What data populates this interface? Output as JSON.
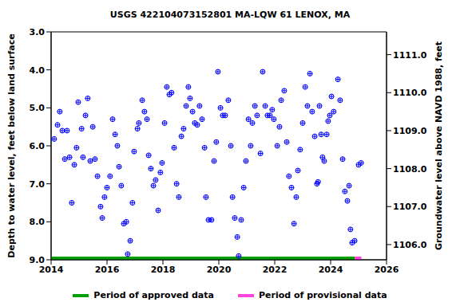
{
  "chart_data": {
    "type": "scatter",
    "title": "USGS 422104073152801 MA-LQW   61 LENOX, MA",
    "y_label": "Depth to water level, feet below land surface",
    "y2_label": "Groundwater level above NAVD 1988, feet",
    "color": "#0000ff",
    "marker": "circle-plus",
    "xlim": [
      2014,
      2026
    ],
    "xticks": [
      2014,
      2016,
      2018,
      2020,
      2022,
      2024,
      2026
    ],
    "ylim": [
      3,
      9
    ],
    "yticks": [
      {
        "value": 3,
        "label": "3.0"
      },
      {
        "value": 4,
        "label": "4.0"
      },
      {
        "value": 5,
        "label": "5.0"
      },
      {
        "value": 6,
        "label": "6.0"
      },
      {
        "value": 7,
        "label": "7.0"
      },
      {
        "value": 8,
        "label": "8.0"
      },
      {
        "value": 9,
        "label": "9.0"
      }
    ],
    "y2lim": [
      1105.6,
      1111.6
    ],
    "y2ticks": [
      {
        "value": 1106,
        "label": "1106.0"
      },
      {
        "value": 1107,
        "label": "1107.0"
      },
      {
        "value": 1108,
        "label": "1108.0"
      },
      {
        "value": 1109,
        "label": "1109.0"
      },
      {
        "value": 1110,
        "label": "1110.0"
      },
      {
        "value": 1111,
        "label": "1111.0"
      }
    ],
    "x": [
      2014.11,
      2014.23,
      2014.31,
      2014.4,
      2014.49,
      2014.57,
      2014.66,
      2014.74,
      2014.83,
      2014.91,
      2014.97,
      2015.09,
      2015.14,
      2015.23,
      2015.31,
      2015.4,
      2015.49,
      2015.57,
      2015.66,
      2015.77,
      2015.83,
      2015.91,
      2016.0,
      2016.11,
      2016.2,
      2016.29,
      2016.37,
      2016.43,
      2016.51,
      2016.6,
      2016.69,
      2016.74,
      2016.83,
      2016.91,
      2016.97,
      2017.09,
      2017.14,
      2017.26,
      2017.34,
      2017.43,
      2017.49,
      2017.57,
      2017.66,
      2017.74,
      2017.83,
      2017.91,
      2017.97,
      2018.06,
      2018.14,
      2018.23,
      2018.31,
      2018.4,
      2018.49,
      2018.57,
      2018.66,
      2018.74,
      2018.83,
      2018.91,
      2018.97,
      2019.06,
      2019.14,
      2019.23,
      2019.31,
      2019.4,
      2019.49,
      2019.54,
      2019.63,
      2019.74,
      2019.83,
      2019.91,
      2019.97,
      2020.06,
      2020.14,
      2020.23,
      2020.34,
      2020.43,
      2020.49,
      2020.57,
      2020.66,
      2020.71,
      2020.8,
      2020.89,
      2020.97,
      2021.06,
      2021.14,
      2021.2,
      2021.29,
      2021.37,
      2021.49,
      2021.57,
      2021.66,
      2021.74,
      2021.83,
      2021.91,
      2021.97,
      2022.09,
      2022.17,
      2022.23,
      2022.34,
      2022.43,
      2022.51,
      2022.6,
      2022.69,
      2022.77,
      2022.83,
      2022.91,
      2023.0,
      2023.09,
      2023.17,
      2023.26,
      2023.34,
      2023.43,
      2023.51,
      2023.55,
      2023.6,
      2023.66,
      2023.71,
      2023.77,
      2023.86,
      2023.91,
      2023.97,
      2024.03,
      2024.11,
      2024.26,
      2024.34,
      2024.43,
      2024.51,
      2024.6,
      2024.66,
      2024.71,
      2024.77,
      2024.86,
      2025.0,
      2025.09
    ],
    "values": [
      5.82,
      5.45,
      5.1,
      5.6,
      6.35,
      5.6,
      6.3,
      7.5,
      6.5,
      6.05,
      4.85,
      5.55,
      6.3,
      5.2,
      4.75,
      6.4,
      5.5,
      6.35,
      6.8,
      7.6,
      7.9,
      7.35,
      7.1,
      6.8,
      5.3,
      5.7,
      6.0,
      6.55,
      7.05,
      8.05,
      8.0,
      8.85,
      8.5,
      7.5,
      6.15,
      5.55,
      5.4,
      4.8,
      5.1,
      5.3,
      6.25,
      6.6,
      7.05,
      6.9,
      7.7,
      6.7,
      6.45,
      5.4,
      4.45,
      4.65,
      4.6,
      6.05,
      7.0,
      7.35,
      5.75,
      5.55,
      4.95,
      4.45,
      4.75,
      5.1,
      5.4,
      5.45,
      4.95,
      5.3,
      6.05,
      7.35,
      7.95,
      7.95,
      6.4,
      5.9,
      4.05,
      5.0,
      5.2,
      5.2,
      4.8,
      6.0,
      7.35,
      7.9,
      8.4,
      8.9,
      7.95,
      7.1,
      6.4,
      5.3,
      6.0,
      5.4,
      4.95,
      5.2,
      6.2,
      4.05,
      4.95,
      5.2,
      5.2,
      5.05,
      5.3,
      6.0,
      5.5,
      4.8,
      4.55,
      5.9,
      6.8,
      7.1,
      8.05,
      7.35,
      6.65,
      6.1,
      5.4,
      4.45,
      4.95,
      4.1,
      5.1,
      5.75,
      7.0,
      6.95,
      4.95,
      5.7,
      6.3,
      6.4,
      5.7,
      5.35,
      5.2,
      4.7,
      5.1,
      4.25,
      4.8,
      6.35,
      7.2,
      7.45,
      7.05,
      8.2,
      8.55,
      8.5,
      6.5,
      6.45
    ],
    "periods": [
      {
        "name": "Period of approved data",
        "color": "#00a000",
        "start": 2014,
        "end": 2024.86
      },
      {
        "name": "Period of provisional data",
        "color": "#ff44dd",
        "start": 2024.86,
        "end": 2025.1
      }
    ]
  }
}
